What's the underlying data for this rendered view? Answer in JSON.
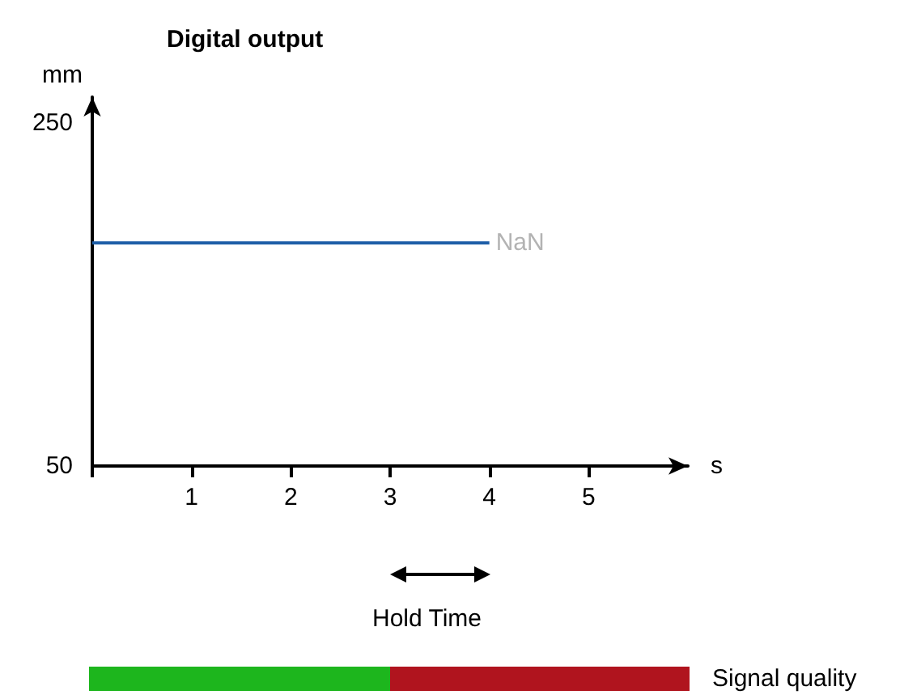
{
  "chart_data": {
    "type": "line",
    "title": "Digital output",
    "xlabel": "s",
    "ylabel": "mm",
    "x": [
      0,
      4
    ],
    "series": [
      {
        "color": "#1f5fa8",
        "values": [
          180,
          180
        ]
      }
    ],
    "xlim": [
      0,
      6
    ],
    "xticks": [
      {
        "value": 0,
        "label": null
      },
      1,
      2,
      3,
      4,
      5
    ],
    "ylim": [
      50,
      265
    ],
    "yticks": [
      50,
      250
    ],
    "annotations": [
      {
        "text": "NaN",
        "x": 4,
        "y": 180
      },
      "Hold Time",
      "Signal quality"
    ],
    "grid": false,
    "marker": "none",
    "line_style": "solid"
  }
}
